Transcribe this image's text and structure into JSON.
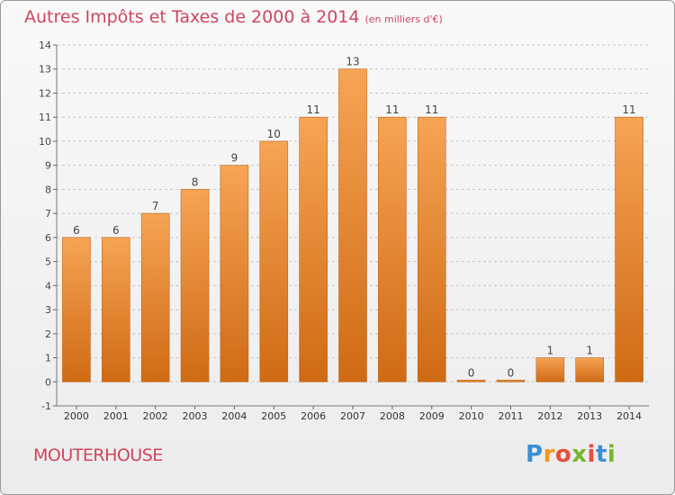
{
  "title": "Autres Impôts et Taxes de 2000 à 2014",
  "title_unit": "(en milliers d'€)",
  "commune": "MOUTERHOUSE",
  "logo": {
    "letters": [
      "P",
      "r",
      "o",
      "x",
      "i",
      "t",
      "i"
    ],
    "colors": [
      "#3c8fd3",
      "#f39a1e",
      "#e94e3c",
      "#74b72e",
      "#e94e3c",
      "#3c8fd3",
      "#74b72e"
    ]
  },
  "colors": {
    "title": "#d0455f",
    "bar_light": "#f6a455",
    "bar_dark": "#cf6a14",
    "grid": "#c8c8c8"
  },
  "chart_data": {
    "type": "bar",
    "categories": [
      "2000",
      "2001",
      "2002",
      "2003",
      "2004",
      "2005",
      "2006",
      "2007",
      "2008",
      "2009",
      "2010",
      "2011",
      "2012",
      "2013",
      "2014"
    ],
    "values": [
      6,
      6,
      7,
      8,
      9,
      10,
      11,
      13,
      11,
      11,
      0,
      0,
      1,
      1,
      11
    ],
    "data_labels": [
      "6",
      "6",
      "7",
      "8",
      "9",
      "10",
      "11",
      "13",
      "11",
      "11",
      "0",
      "0",
      "1",
      "1",
      "11"
    ],
    "y_ticks": [
      "-1",
      "0",
      "1",
      "2",
      "3",
      "4",
      "5",
      "6",
      "7",
      "8",
      "9",
      "10",
      "11",
      "12",
      "13",
      "14"
    ],
    "title": "Autres Impôts et Taxes de 2000 à 2014",
    "xlabel": "",
    "ylabel": "",
    "ylim": [
      -1,
      14
    ],
    "grid": "horizontal dashed"
  }
}
